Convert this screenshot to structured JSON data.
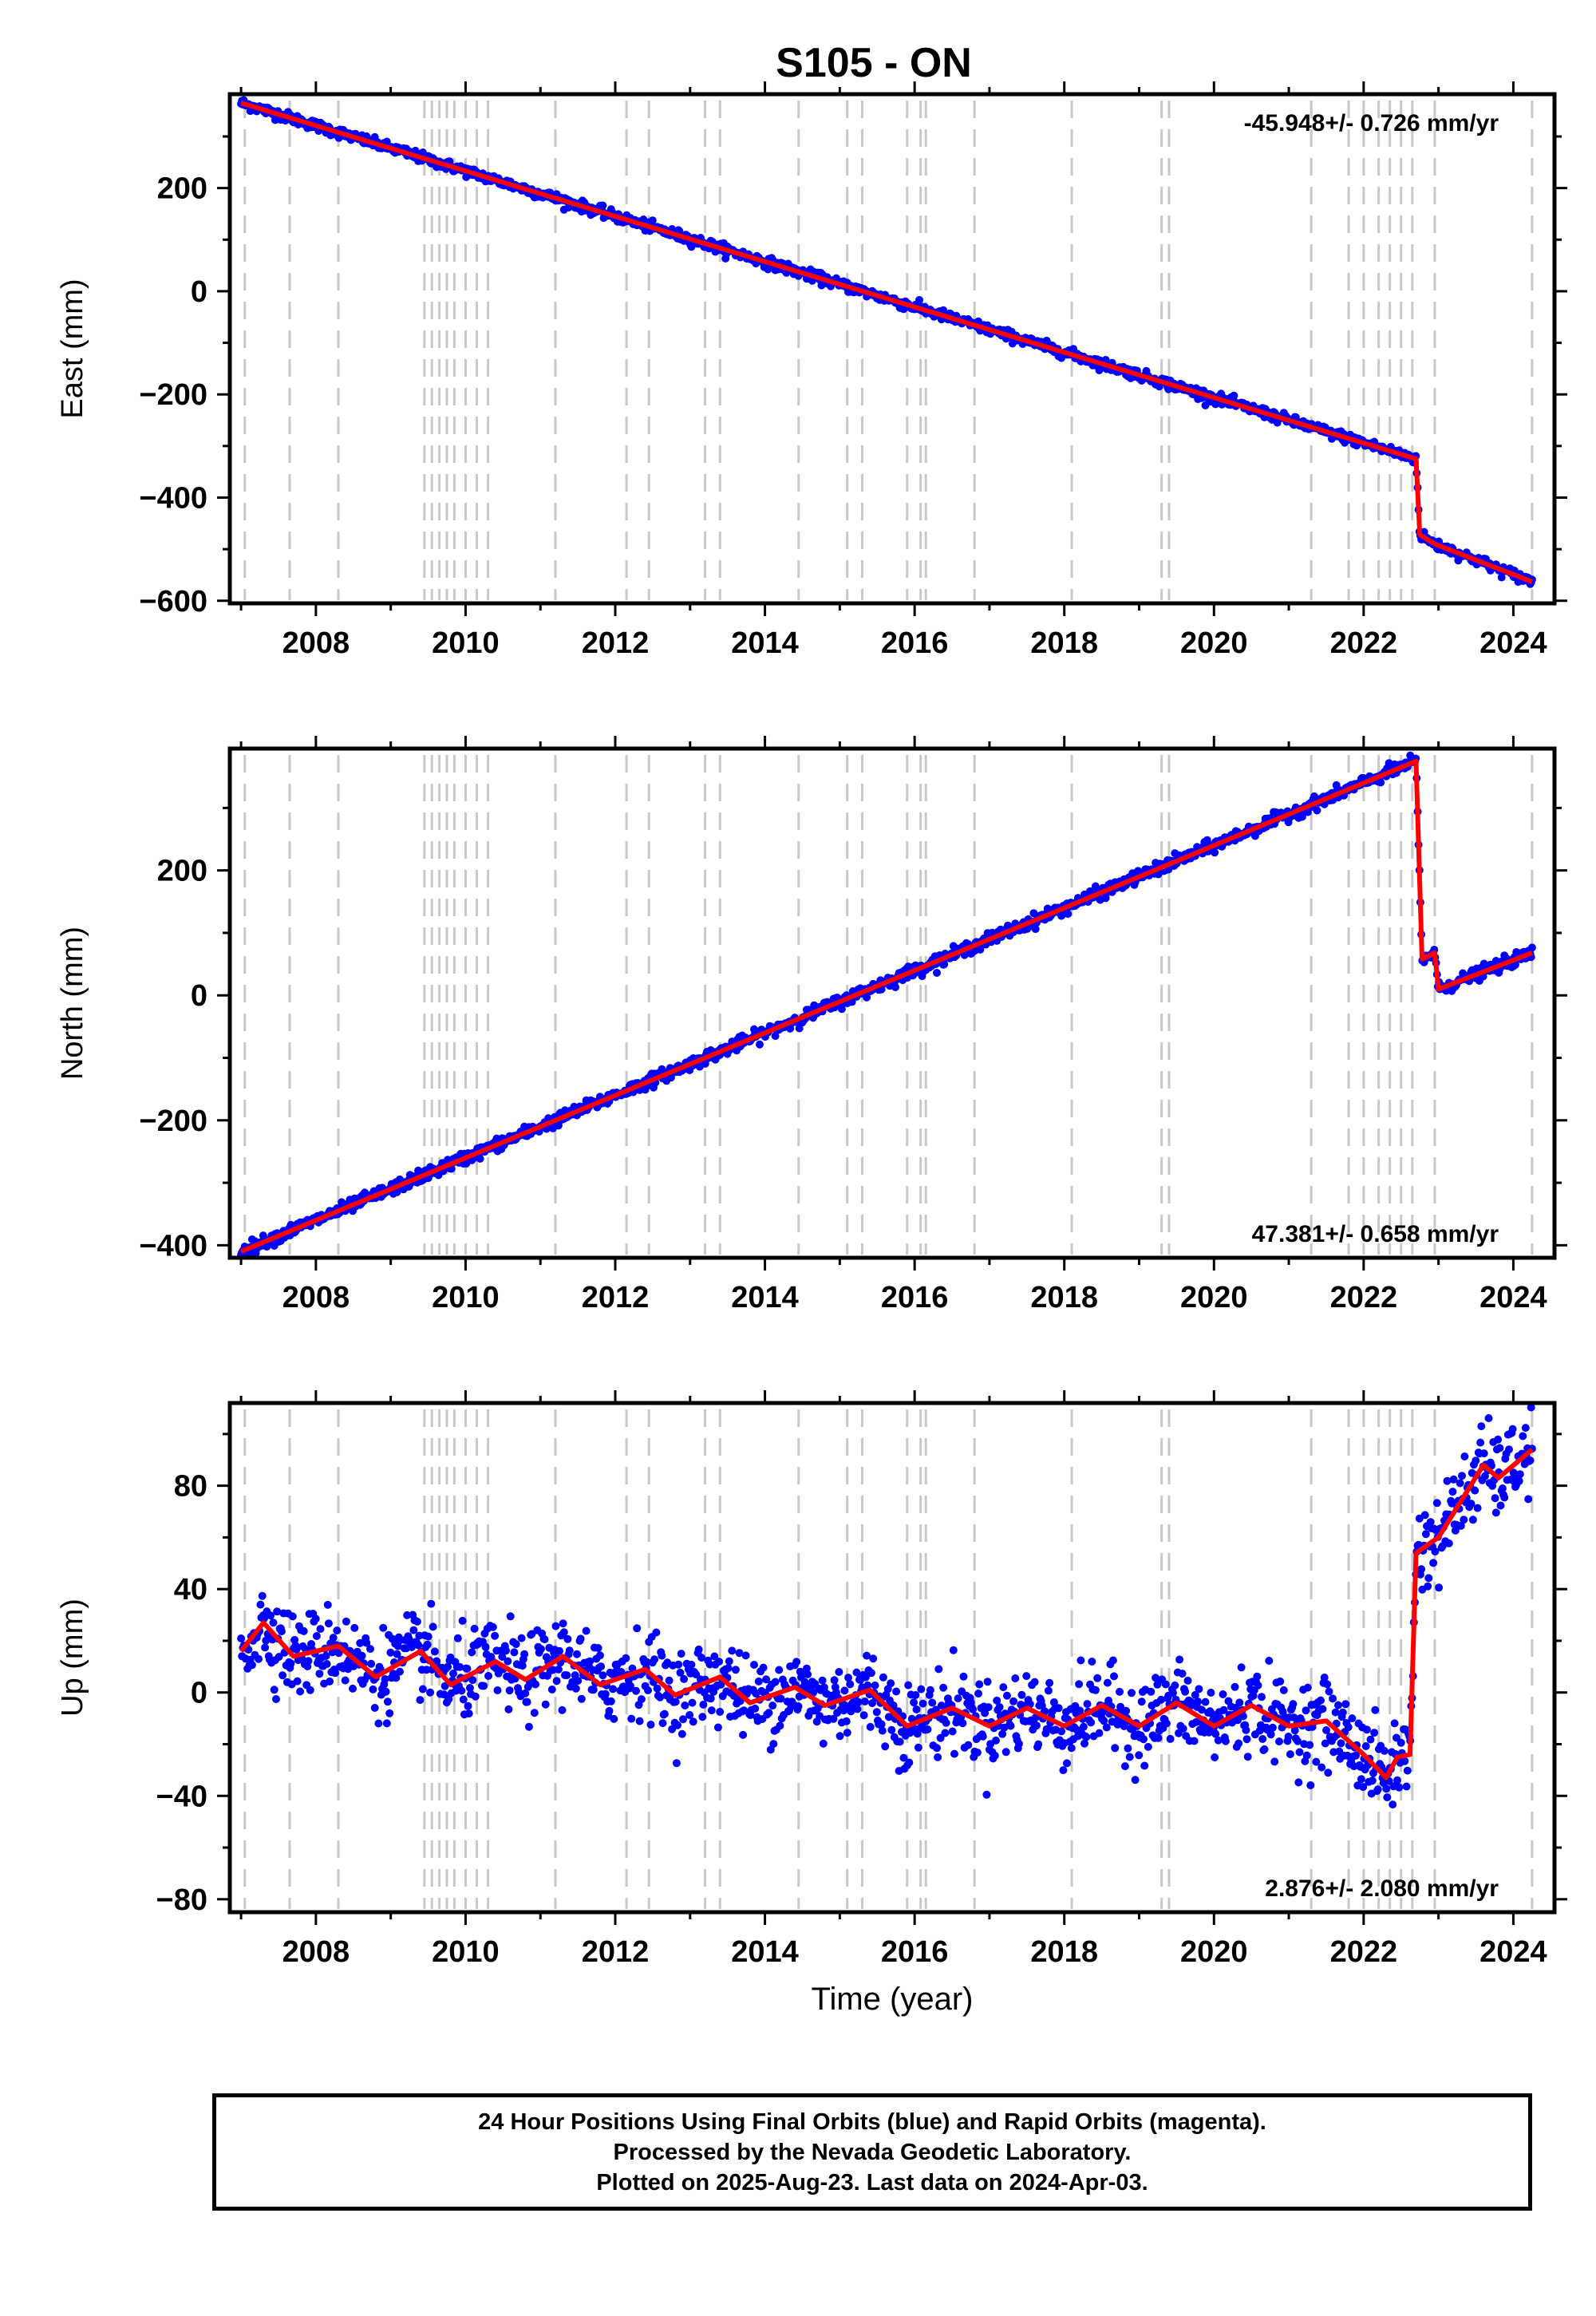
{
  "title": "S105 - ON",
  "colors": {
    "final_orbits": "#0000ff",
    "model": "#ff0000",
    "event_lines": "#c8c8c8",
    "frame": "#000000"
  },
  "chart_data": [
    {
      "type": "scatter",
      "panel": "east",
      "ylabel": "East (mm)",
      "xlim": [
        2006.85,
        2024.55
      ],
      "ylim": [
        -605,
        382
      ],
      "xticks": [
        2008,
        2010,
        2012,
        2014,
        2016,
        2018,
        2020,
        2022,
        2024
      ],
      "yticks": [
        -600,
        -400,
        -200,
        0,
        200
      ],
      "rate_label": "-45.948+/- 0.726 mm/yr",
      "rate_position": "top-right",
      "model": [
        [
          2007.0,
          365
        ],
        [
          2022.7,
          -325
        ],
        [
          2022.75,
          -472
        ],
        [
          2022.95,
          -490
        ],
        [
          2024.25,
          -563
        ]
      ],
      "noise_mm": 5
    },
    {
      "type": "scatter",
      "panel": "north",
      "ylabel": "North (mm)",
      "xlim": [
        2006.85,
        2024.55
      ],
      "ylim": [
        -420,
        395
      ],
      "xticks": [
        2008,
        2010,
        2012,
        2014,
        2016,
        2018,
        2020,
        2022,
        2024
      ],
      "yticks": [
        -400,
        -200,
        0,
        200
      ],
      "rate_label": "47.381+/- 0.658 mm/yr",
      "rate_position": "bottom-right",
      "model": [
        [
          2007.0,
          -410
        ],
        [
          2022.7,
          375
        ],
        [
          2022.78,
          58
        ],
        [
          2022.95,
          68
        ],
        [
          2023.0,
          10
        ],
        [
          2024.25,
          68
        ]
      ],
      "noise_mm": 5
    },
    {
      "type": "scatter",
      "panel": "up",
      "ylabel": "Up (mm)",
      "xlabel": "Time (year)",
      "xlim": [
        2006.85,
        2024.55
      ],
      "ylim": [
        -85,
        112
      ],
      "xticks": [
        2008,
        2010,
        2012,
        2014,
        2016,
        2018,
        2020,
        2022,
        2024
      ],
      "yticks": [
        -80,
        -40,
        0,
        40,
        80
      ],
      "rate_label": "2.876+/- 2.080 mm/yr",
      "rate_position": "bottom-right",
      "model": [
        [
          2007.0,
          16
        ],
        [
          2007.3,
          27
        ],
        [
          2007.7,
          14
        ],
        [
          2008.3,
          18
        ],
        [
          2008.8,
          6
        ],
        [
          2009.4,
          16
        ],
        [
          2009.8,
          3
        ],
        [
          2010.4,
          12
        ],
        [
          2010.8,
          5
        ],
        [
          2011.3,
          14
        ],
        [
          2011.8,
          3
        ],
        [
          2012.4,
          9
        ],
        [
          2012.8,
          -1
        ],
        [
          2013.4,
          6
        ],
        [
          2013.8,
          -4
        ],
        [
          2014.4,
          2
        ],
        [
          2014.8,
          -5
        ],
        [
          2015.4,
          1
        ],
        [
          2015.9,
          -13
        ],
        [
          2016.5,
          -6
        ],
        [
          2017.0,
          -13
        ],
        [
          2017.5,
          -6
        ],
        [
          2018.0,
          -13
        ],
        [
          2018.5,
          -5
        ],
        [
          2019.0,
          -13
        ],
        [
          2019.5,
          -4
        ],
        [
          2020.0,
          -13
        ],
        [
          2020.5,
          -5
        ],
        [
          2021.0,
          -13
        ],
        [
          2021.5,
          -11
        ],
        [
          2022.0,
          -24
        ],
        [
          2022.3,
          -33
        ],
        [
          2022.45,
          -25
        ],
        [
          2022.62,
          -24
        ],
        [
          2022.7,
          54
        ],
        [
          2023.0,
          60
        ],
        [
          2023.6,
          88
        ],
        [
          2023.8,
          83
        ],
        [
          2024.25,
          94
        ]
      ],
      "noise_mm": 8
    }
  ],
  "event_lines_years": [
    2007.05,
    2007.65,
    2008.3,
    2009.45,
    2009.55,
    2009.65,
    2009.75,
    2009.85,
    2010.0,
    2010.15,
    2010.3,
    2011.2,
    2012.15,
    2012.45,
    2013.2,
    2013.4,
    2014.45,
    2015.1,
    2015.3,
    2015.9,
    2016.08,
    2016.15,
    2016.8,
    2018.1,
    2019.3,
    2019.4,
    2021.3,
    2021.8,
    2022.0,
    2022.2,
    2022.35,
    2022.5,
    2022.65,
    2022.95,
    2024.25
  ],
  "footer": {
    "line1": "24 Hour Positions Using Final Orbits (blue) and Rapid Orbits (magenta).",
    "line2": "Processed by the Nevada Geodetic Laboratory.",
    "line3": "Plotted on 2025-Aug-23. Last data on 2024-Apr-03."
  }
}
